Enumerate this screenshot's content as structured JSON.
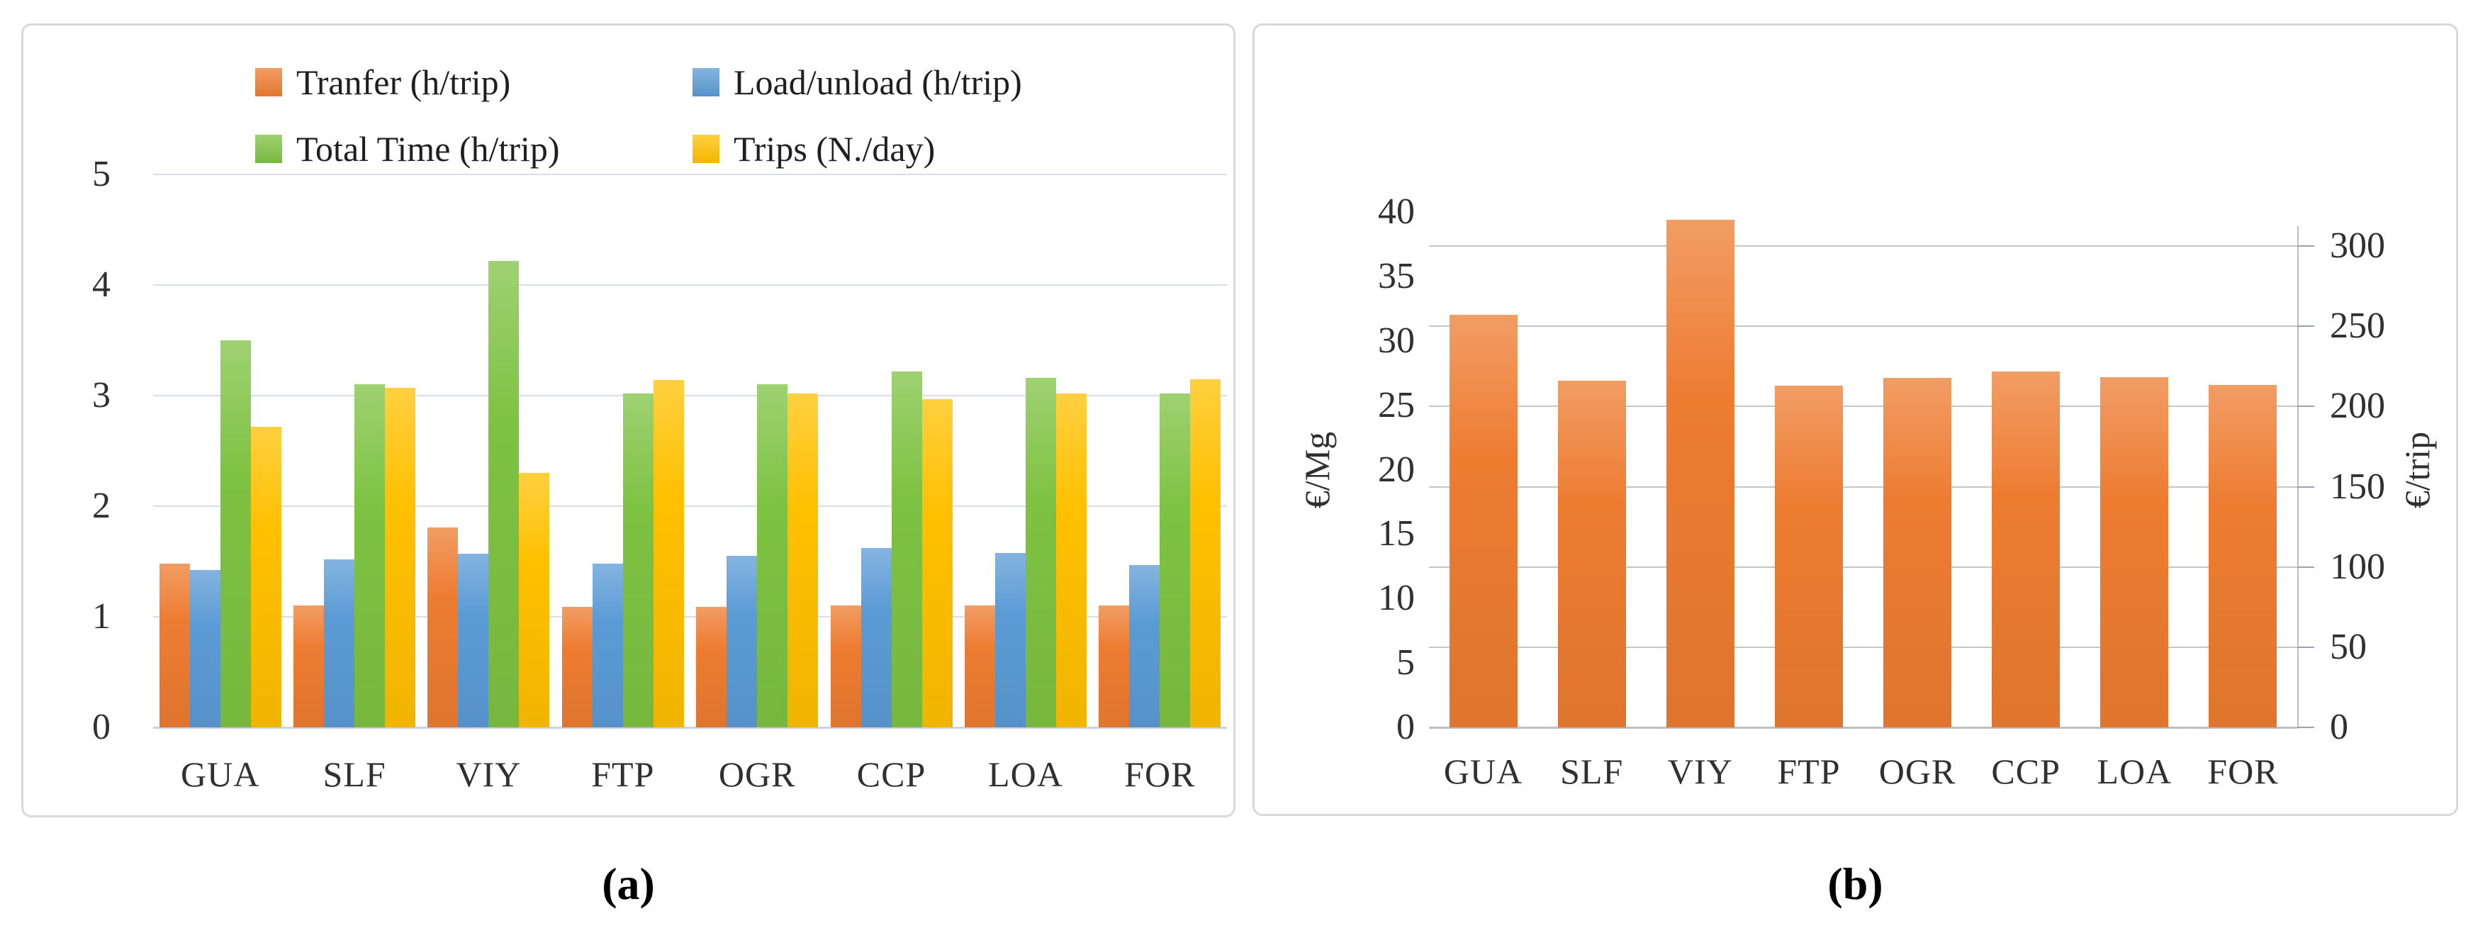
{
  "chart_data": [
    {
      "id": "a",
      "type": "bar",
      "caption": "(a)",
      "title": "",
      "xlabel": "",
      "ylabel": "",
      "categories": [
        "GUA",
        "SLF",
        "VIY",
        "FTP",
        "OGR",
        "CCP",
        "LOA",
        "FOR"
      ],
      "ylim": [
        0,
        5
      ],
      "y_ticks": [
        0,
        1,
        2,
        3,
        4,
        5
      ],
      "grid": true,
      "legend_position": "top",
      "series": [
        {
          "name": "Tranfer (h/trip)",
          "color": "#ED7C31",
          "values": [
            1.48,
            1.1,
            1.81,
            1.09,
            1.09,
            1.1,
            1.1,
            1.1
          ]
        },
        {
          "name": "Load/unload (h/trip)",
          "color": "#5B9BD5",
          "values": [
            1.42,
            1.52,
            1.57,
            1.48,
            1.55,
            1.62,
            1.58,
            1.47
          ]
        },
        {
          "name": "Total Time (h/trip)",
          "color": "#7EC242",
          "values": [
            3.5,
            3.1,
            4.22,
            3.02,
            3.1,
            3.22,
            3.16,
            3.02
          ]
        },
        {
          "name": "Trips (N./day)",
          "color": "#FFC000",
          "values": [
            2.72,
            3.07,
            2.3,
            3.14,
            3.02,
            2.97,
            3.02,
            3.15
          ]
        }
      ]
    },
    {
      "id": "b",
      "type": "bar",
      "caption": "(b)",
      "title": "",
      "categories": [
        "GUA",
        "SLF",
        "VIY",
        "FTP",
        "OGR",
        "CCP",
        "LOA",
        "FOR"
      ],
      "left_axis": {
        "title": "€/Mg",
        "ticks": [
          0,
          5,
          10,
          15,
          20,
          25,
          30,
          35,
          40
        ],
        "max": 40
      },
      "right_axis": {
        "title": "€/trip",
        "ticks": [
          0,
          50,
          100,
          150,
          200,
          250,
          300
        ],
        "max": 300
      },
      "grid": true,
      "series": [
        {
          "color": "#ED7C31",
          "values": [
            32.0,
            26.9,
            39.4,
            26.5,
            27.1,
            27.6,
            27.2,
            26.6
          ],
          "values_eur_per_trip_approx": [
            258,
            217,
            318,
            214,
            219,
            223,
            219,
            215
          ]
        }
      ]
    }
  ]
}
